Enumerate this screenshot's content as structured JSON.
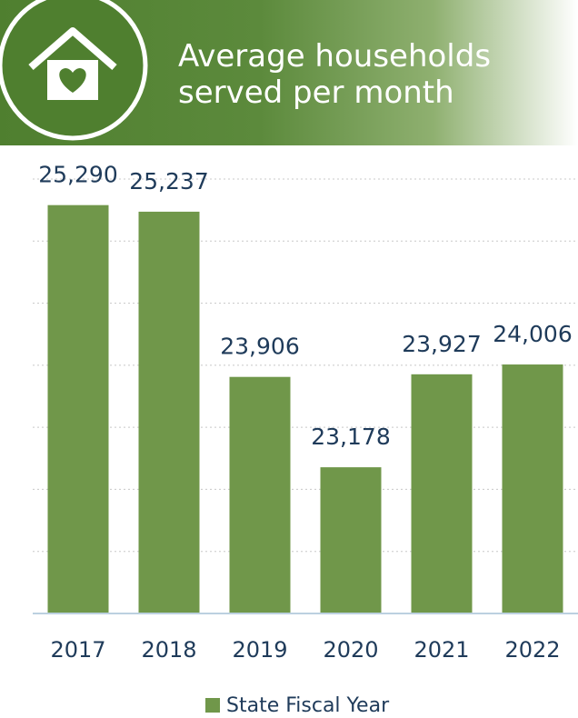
{
  "chart_data": {
    "type": "bar",
    "title": "Average households served per month",
    "categories": [
      "2017",
      "2018",
      "2019",
      "2020",
      "2021",
      "2022"
    ],
    "series": [
      {
        "name": "State Fiscal Year",
        "color": "#70974a",
        "values": [
          25290,
          25237,
          23906,
          23178,
          23927,
          24006
        ],
        "value_labels": [
          "25,290",
          "25,237",
          "23,906",
          "23,178",
          "23,927",
          "24,006"
        ]
      }
    ],
    "ylim": [
      22000,
      25500
    ],
    "yticks": [
      22000,
      22500,
      23000,
      23500,
      24000,
      24500,
      25000,
      25500
    ],
    "grid": true
  }
}
